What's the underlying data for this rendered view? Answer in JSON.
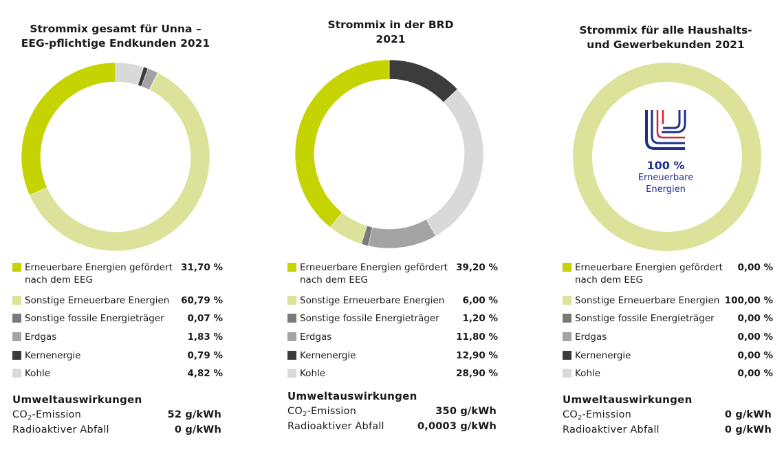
{
  "chart_data": [
    {
      "type": "pie",
      "title": "Strommix gesamt für Unna – EEG-pflichtige Endkunden 2021",
      "title_lines": [
        "Strommix gesamt für Unna –",
        "EEG-pflichtige Endkunden 2021"
      ],
      "unit": "%",
      "categories": [
        "Erneuerbare Energien gefördert nach dem EEG",
        "Sonstige Erneuerbare Energien",
        "Sonstige fossile Energieträger",
        "Erdgas",
        "Kernenergie",
        "Kohle"
      ],
      "values": [
        31.7,
        60.79,
        0.07,
        1.83,
        0.79,
        4.82
      ],
      "value_labels": [
        "31,70 %",
        "60,79 %",
        "0,07 %",
        "1,83 %",
        "0,79 %",
        "4,82 %"
      ],
      "slice_order": [
        5,
        4,
        3,
        2,
        1,
        0
      ],
      "umwelt": {
        "heading": "Umweltauswirkungen",
        "co2_label_pre": "CO",
        "co2_label_sub": "2",
        "co2_label_post": "-Emission",
        "co2_value": "52 g/kWh",
        "waste_label": "Radioaktiver Abfall",
        "waste_value": "0 g/kWh"
      }
    },
    {
      "type": "pie",
      "title": "Strommix in der BRD 2021",
      "title_lines": [
        "Strommix in der BRD",
        "2021"
      ],
      "unit": "%",
      "categories": [
        "Erneuerbare Energien gefördert nach dem EEG",
        "Sonstige Erneuerbare Energien",
        "Sonstige fossile Energieträger",
        "Erdgas",
        "Kernenergie",
        "Kohle"
      ],
      "values": [
        39.2,
        6.0,
        1.2,
        11.8,
        12.9,
        28.9
      ],
      "value_labels": [
        "39,20 %",
        "6,00 %",
        "1,20 %",
        "11,80 %",
        "12,90 %",
        "28,90 %"
      ],
      "slice_order": [
        4,
        5,
        3,
        2,
        1,
        0
      ],
      "umwelt": {
        "heading": "Umweltauswirkungen",
        "co2_label_pre": "CO",
        "co2_label_sub": "2",
        "co2_label_post": "-Emission",
        "co2_value": "350 g/kWh",
        "waste_label": "Radioaktiver Abfall",
        "waste_value": "0,0003 g/kWh"
      }
    },
    {
      "type": "pie",
      "title": "Strommix für alle Haushalts- und Gewerbekunden 2021",
      "title_lines": [
        "Strommix für alle Haushalts-",
        "und Gewerbekunden 2021"
      ],
      "unit": "%",
      "categories": [
        "Erneuerbare Energien gefördert nach dem EEG",
        "Sonstige Erneuerbare Energien",
        "Sonstige fossile Energieträger",
        "Erdgas",
        "Kernenergie",
        "Kohle"
      ],
      "values": [
        0.0,
        100.0,
        0.0,
        0.0,
        0.0,
        0.0
      ],
      "value_labels": [
        "0,00 %",
        "100,00 %",
        "0,00 %",
        "0,00 %",
        "0,00 %",
        "0,00 %"
      ],
      "slice_order": [
        1
      ],
      "center_label": {
        "percent": "100 %",
        "line1": "Erneuerbare",
        "line2": "Energien"
      },
      "umwelt": {
        "heading": "Umweltauswirkungen",
        "co2_label_pre": "CO",
        "co2_label_sub": "2",
        "co2_label_post": "-Emission",
        "co2_value": "0 g/kWh",
        "waste_label": "Radioaktiver Abfall",
        "waste_value": "0 g/kWh"
      }
    }
  ],
  "colors": [
    "#c5d300",
    "#dde29a",
    "#7a7a7a",
    "#a3a3a3",
    "#3c3c3c",
    "#d9d9d9"
  ],
  "logo": {
    "blue": "#1e2f8c",
    "red": "#d8202a"
  }
}
